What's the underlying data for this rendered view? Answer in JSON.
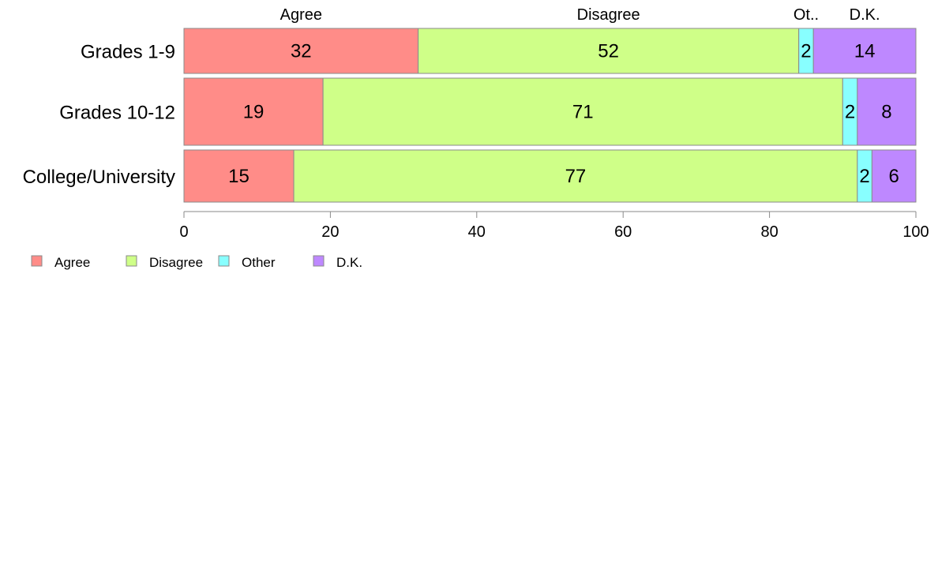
{
  "chart_data": {
    "type": "bar",
    "orientation": "horizontal",
    "stacked": true,
    "categories": [
      "Grades 1-9",
      "Grades 10-12",
      "College/University"
    ],
    "series": [
      {
        "name": "Agree",
        "short_label": "Agree",
        "color": "#ff8c88",
        "values": [
          32,
          19,
          15
        ]
      },
      {
        "name": "Disagree",
        "short_label": "Disagree",
        "color": "#cfff88",
        "values": [
          52,
          71,
          77
        ]
      },
      {
        "name": "Other",
        "short_label": "Ot..",
        "color": "#88ffff",
        "values": [
          2,
          2,
          2
        ]
      },
      {
        "name": "D.K.",
        "short_label": "D.K.",
        "color": "#be88ff",
        "values": [
          14,
          8,
          6
        ]
      }
    ],
    "xlim": [
      0,
      100
    ],
    "x_ticks": [
      0,
      20,
      40,
      60,
      80,
      100
    ],
    "grid": false,
    "legend_position": "bottom-left"
  }
}
